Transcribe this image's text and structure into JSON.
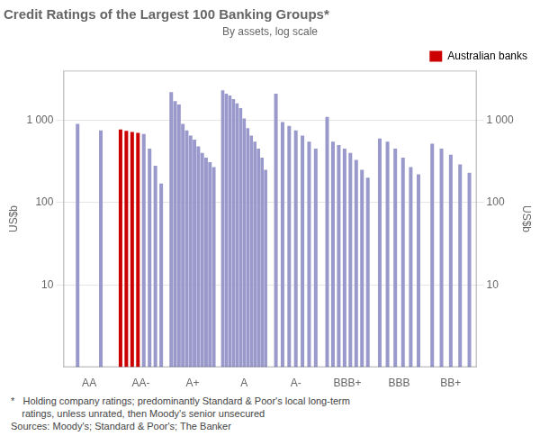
{
  "chart_data": {
    "type": "bar",
    "title": "Credit Ratings of the Largest 100 Banking Groups*",
    "subtitle": "By assets, log scale",
    "ylabel": "US$b",
    "y2label": "US$b",
    "footnotes": [
      "*   Holding company ratings; predominantly Standard & Poor's local long-term",
      "    ratings, unless unrated, then Moody's senior unsecured",
      "Sources: Moody's; Standard & Poor's; The Banker"
    ],
    "categories": [
      "AA",
      "AA-",
      "A+",
      "A",
      "A-",
      "BBB+",
      "BBB",
      "BB+"
    ],
    "series": [
      {
        "name": "Australian banks",
        "color": "#cc0000",
        "values": [
          [],
          [
            770,
            740,
            720,
            700
          ],
          [],
          [],
          [],
          [],
          [],
          []
        ]
      },
      {
        "color": "#9999cc",
        "values": [
          [
            900,
            750
          ],
          [
            680,
            450,
            280,
            170
          ],
          [
            2200,
            1700,
            1550,
            900,
            750,
            650,
            580,
            480,
            400,
            350,
            310,
            270
          ],
          [
            2300,
            2100,
            2000,
            1800,
            1600,
            1400,
            1050,
            800,
            650,
            550,
            450,
            350,
            250
          ],
          [
            2100,
            950,
            850,
            750,
            650,
            550,
            450
          ],
          [
            1100,
            550,
            500,
            450,
            400,
            330,
            250,
            200
          ],
          [
            600,
            550,
            450,
            350,
            270,
            220
          ],
          [
            520,
            450,
            380,
            290,
            230
          ]
        ]
      }
    ],
    "log": "y",
    "ylim": [
      1,
      4000
    ],
    "yticks": [
      10,
      100,
      {
        "value": 1000,
        "label": "1 000"
      }
    ],
    "y2lim": [
      1,
      4000
    ],
    "y2ticks": [
      10,
      100,
      {
        "value": 1000,
        "label": "1 000"
      }
    ],
    "grid": true,
    "legend": "upper right"
  }
}
